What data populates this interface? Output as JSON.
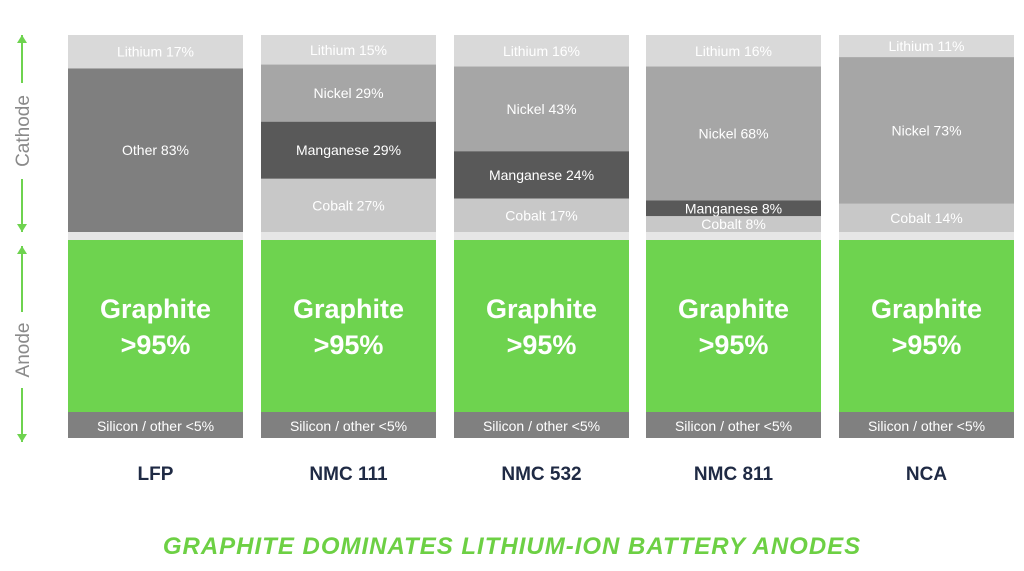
{
  "chart_data": {
    "type": "bar",
    "stacked": true,
    "title": "GRAPHITE DOMINATES LITHIUM-ION BATTERY ANODES",
    "y_axis_labels": {
      "cathode": "Cathode",
      "anode": "Anode"
    },
    "categories": [
      "LFP",
      "NMC 111",
      "NMC 532",
      "NMC 811",
      "NCA"
    ],
    "colors": {
      "lithium": "#d9d9d9",
      "other": "#7f7f7f",
      "nickel": "#a6a6a6",
      "manganese": "#595959",
      "cobalt": "#c8c8c8",
      "separator": "#e6e6e6",
      "graphite": "#6ed34f",
      "silicon": "#808080",
      "arrow": "#6ed34f",
      "category_text": "#1f2a44"
    },
    "cathode": [
      {
        "category": "LFP",
        "components": [
          {
            "name": "Lithium",
            "value": 17,
            "label": "Lithium 17%",
            "color_key": "lithium"
          },
          {
            "name": "Other",
            "value": 83,
            "label": "Other 83%",
            "color_key": "other"
          }
        ]
      },
      {
        "category": "NMC 111",
        "components": [
          {
            "name": "Lithium",
            "value": 15,
            "label": "Lithium 15%",
            "color_key": "lithium"
          },
          {
            "name": "Nickel",
            "value": 29,
            "label": "Nickel 29%",
            "color_key": "nickel"
          },
          {
            "name": "Manganese",
            "value": 29,
            "label": "Manganese 29%",
            "color_key": "manganese"
          },
          {
            "name": "Cobalt",
            "value": 27,
            "label": "Cobalt 27%",
            "color_key": "cobalt"
          }
        ]
      },
      {
        "category": "NMC 532",
        "components": [
          {
            "name": "Lithium",
            "value": 16,
            "label": "Lithium 16%",
            "color_key": "lithium"
          },
          {
            "name": "Nickel",
            "value": 43,
            "label": "Nickel 43%",
            "color_key": "nickel"
          },
          {
            "name": "Manganese",
            "value": 24,
            "label": "Manganese 24%",
            "color_key": "manganese"
          },
          {
            "name": "Cobalt",
            "value": 17,
            "label": "Cobalt 17%",
            "color_key": "cobalt"
          }
        ]
      },
      {
        "category": "NMC 811",
        "components": [
          {
            "name": "Lithium",
            "value": 16,
            "label": "Lithium 16%",
            "color_key": "lithium"
          },
          {
            "name": "Nickel",
            "value": 68,
            "label": "Nickel 68%",
            "color_key": "nickel"
          },
          {
            "name": "Manganese",
            "value": 8,
            "label": "Manganese 8%",
            "color_key": "manganese"
          },
          {
            "name": "Cobalt",
            "value": 8,
            "label": "Cobalt 8%",
            "color_key": "cobalt"
          }
        ]
      },
      {
        "category": "NCA",
        "components": [
          {
            "name": "Lithium",
            "value": 11,
            "label": "Lithium 11%",
            "color_key": "lithium"
          },
          {
            "name": "Nickel",
            "value": 73,
            "label": "Nickel 73%",
            "color_key": "nickel"
          },
          {
            "name": "Cobalt",
            "value": 14,
            "label": "Cobalt 14%",
            "color_key": "cobalt"
          }
        ]
      }
    ],
    "anode": [
      {
        "category": "LFP",
        "components": [
          {
            "name": "Graphite",
            "label_lines": [
              "Graphite",
              ">95%"
            ],
            "color_key": "graphite"
          },
          {
            "name": "Silicon / other",
            "label": "Silicon / other <5%",
            "color_key": "silicon"
          }
        ]
      },
      {
        "category": "NMC 111",
        "components": [
          {
            "name": "Graphite",
            "label_lines": [
              "Graphite",
              ">95%"
            ],
            "color_key": "graphite"
          },
          {
            "name": "Silicon / other",
            "label": "Silicon / other <5%",
            "color_key": "silicon"
          }
        ]
      },
      {
        "category": "NMC 532",
        "components": [
          {
            "name": "Graphite",
            "label_lines": [
              "Graphite",
              ">95%"
            ],
            "color_key": "graphite"
          },
          {
            "name": "Silicon / other",
            "label": "Silicon / other <5%",
            "color_key": "silicon"
          }
        ]
      },
      {
        "category": "NMC 811",
        "components": [
          {
            "name": "Graphite",
            "label_lines": [
              "Graphite",
              ">95%"
            ],
            "color_key": "graphite"
          },
          {
            "name": "Silicon / other",
            "label": "Silicon / other <5%",
            "color_key": "silicon"
          }
        ]
      },
      {
        "category": "NCA",
        "components": [
          {
            "name": "Graphite",
            "label_lines": [
              "Graphite",
              ">95%"
            ],
            "color_key": "graphite"
          },
          {
            "name": "Silicon / other",
            "label": "Silicon / other <5%",
            "color_key": "silicon"
          }
        ]
      }
    ]
  }
}
